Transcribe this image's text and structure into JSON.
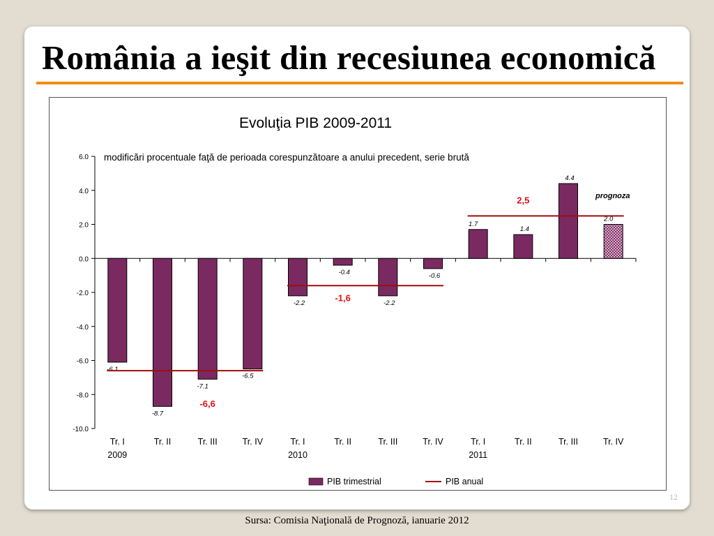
{
  "slide": {
    "title": "România a ieşit din recesiunea economică",
    "source": "Sursa: Comisia Naţională de Prognoză,  ianuarie 2012",
    "page_number": "12",
    "accent_color": "#f08c1a"
  },
  "chart_data": {
    "type": "bar",
    "title": "Evoluţia PIB 2009-2011",
    "subtitle": "modificări procentuale faţă de perioada corespunzătoare a anului precedent, serie brută",
    "xlabel": "",
    "ylabel": "",
    "ylim": [
      -10,
      6
    ],
    "yticks": [
      "-10.0",
      "-8.0",
      "-6.0",
      "-4.0",
      "-2.0",
      "0.0",
      "2.0",
      "4.0",
      "6.0"
    ],
    "categories": [
      "Tr. I",
      "Tr. II",
      "Tr. III",
      "Tr. IV",
      "Tr. I",
      "Tr. II",
      "Tr. III",
      "Tr. IV",
      "Tr. I",
      "Tr. II",
      "Tr. III",
      "Tr. IV"
    ],
    "category_years": [
      "2009",
      "",
      "",
      "",
      "2010",
      "",
      "",
      "",
      "2011",
      "",
      "",
      ""
    ],
    "series": [
      {
        "name": "PIB trimestrial",
        "color": "#7a2a61",
        "values": [
          -6.1,
          -8.7,
          -7.1,
          -6.5,
          -2.2,
          -0.4,
          -2.2,
          -0.6,
          1.7,
          1.4,
          4.4,
          2.0
        ],
        "labels": [
          "-6.1",
          "-8.7",
          "-7.1",
          "-6.5",
          "-2.2",
          "-0.4",
          "-2.2",
          "-0.6",
          "1.7",
          "1.4",
          "4.4",
          "2.0"
        ],
        "forecast_index": 11
      },
      {
        "name": "PIB anual",
        "color": "#a00c0c",
        "type": "line",
        "segments": [
          {
            "from": "2009 Tr. I",
            "to": "2009 Tr. IV",
            "value": -6.6,
            "label": "-6,6"
          },
          {
            "from": "2010 Tr. I",
            "to": "2010 Tr. IV",
            "value": -1.6,
            "label": "-1,6"
          },
          {
            "from": "2011 Tr. I",
            "to": "2011 Tr. IV",
            "value": 2.5,
            "label": "2,5"
          }
        ]
      }
    ],
    "annotations": [
      "prognoza"
    ],
    "legend_position": "bottom",
    "grid": false
  }
}
